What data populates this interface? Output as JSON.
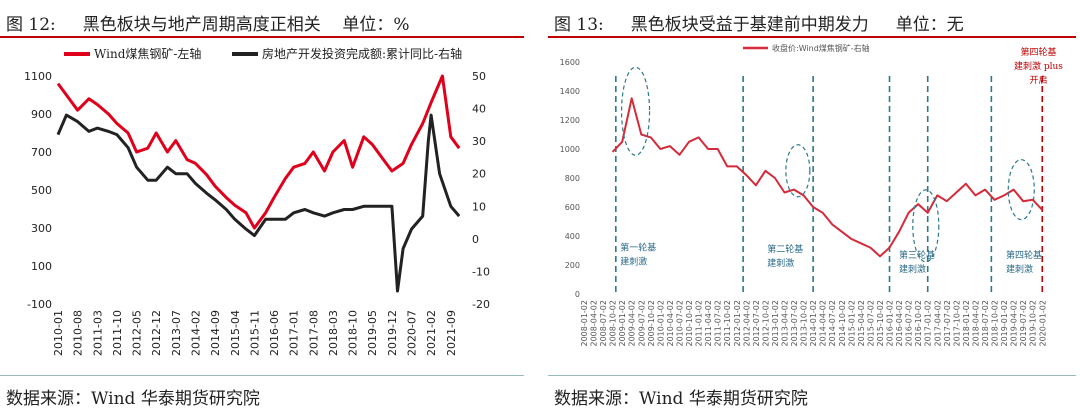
{
  "left": {
    "title": "图 12:     黑色板块与地产周期高度正相关    单位：%",
    "source": "数据来源：Wind 华泰期货研究院",
    "chart_data": {
      "type": "line",
      "legend_placement": "top",
      "series": [
        {
          "name": "Wind煤焦钢矿-左轴",
          "axis": "left",
          "color": "#e0001b",
          "x": [
            "2010-01",
            "2010-04",
            "2010-08",
            "2010-12",
            "2011-03",
            "2011-07",
            "2011-10",
            "2012-02",
            "2012-05",
            "2012-09",
            "2012-12",
            "2013-04",
            "2013-07",
            "2013-11",
            "2014-02",
            "2014-06",
            "2014-09",
            "2015-01",
            "2015-04",
            "2015-08",
            "2015-11",
            "2016-03",
            "2016-06",
            "2016-10",
            "2017-01",
            "2017-05",
            "2017-08",
            "2017-12",
            "2018-03",
            "2018-07",
            "2018-10",
            "2019-02",
            "2019-05",
            "2019-09",
            "2019-12",
            "2020-04",
            "2020-07",
            "2020-11",
            "2021-02",
            "2021-06",
            "2021-09",
            "2021-12"
          ],
          "values": [
            1060,
            1000,
            920,
            980,
            950,
            900,
            850,
            800,
            700,
            720,
            800,
            700,
            760,
            660,
            640,
            580,
            520,
            460,
            420,
            380,
            300,
            380,
            460,
            560,
            620,
            640,
            700,
            600,
            700,
            760,
            620,
            780,
            740,
            660,
            600,
            640,
            740,
            850,
            960,
            1100,
            780,
            720
          ]
        },
        {
          "name": "房地产开发投资完成额:累计同比-右轴",
          "axis": "right",
          "color": "#222222",
          "x": [
            "2010-01",
            "2010-04",
            "2010-08",
            "2010-12",
            "2011-03",
            "2011-07",
            "2011-10",
            "2012-02",
            "2012-05",
            "2012-09",
            "2012-12",
            "2013-04",
            "2013-07",
            "2013-11",
            "2014-02",
            "2014-06",
            "2014-09",
            "2015-01",
            "2015-04",
            "2015-08",
            "2015-11",
            "2016-03",
            "2016-06",
            "2016-10",
            "2017-01",
            "2017-05",
            "2017-08",
            "2017-12",
            "2018-03",
            "2018-07",
            "2018-10",
            "2019-02",
            "2019-05",
            "2019-09",
            "2019-12",
            "2020-02",
            "2020-04",
            "2020-07",
            "2020-11",
            "2021-01",
            "2021-02",
            "2021-05",
            "2021-09",
            "2021-12"
          ],
          "values": [
            32,
            38,
            36,
            33,
            34,
            33,
            32,
            28,
            22,
            18,
            18,
            22,
            20,
            20,
            17,
            14,
            12,
            9,
            6,
            3,
            1,
            6,
            6,
            6,
            8,
            9,
            8,
            7,
            8,
            9,
            9,
            10,
            10,
            10,
            10,
            -16,
            -3,
            3,
            7,
            30,
            38,
            20,
            10,
            7
          ]
        }
      ],
      "y_left": {
        "min": -100,
        "max": 1100,
        "ticks": [
          -100,
          100,
          300,
          500,
          700,
          900,
          1100
        ]
      },
      "y_right": {
        "min": -20,
        "max": 50,
        "ticks": [
          -20,
          -10,
          0,
          10,
          20,
          30,
          40,
          50
        ]
      },
      "x_ticks": [
        "2010-01",
        "2010-08",
        "2011-03",
        "2011-10",
        "2012-05",
        "2012-12",
        "2013-07",
        "2014-02",
        "2014-09",
        "2015-04",
        "2015-11",
        "2016-06",
        "2017-01",
        "2017-08",
        "2018-03",
        "2018-10",
        "2019-05",
        "2019-12",
        "2020-07",
        "2021-02",
        "2021-09"
      ]
    }
  },
  "right": {
    "title": "图 13:     黑色板块受益于基建前中期发力     单位：无",
    "source": "数据来源：Wind 华泰期货研究院",
    "chart_data": {
      "type": "line",
      "legend_placement": "top",
      "series": [
        {
          "name": "收盘价:Wind煤焦钢矿-右轴",
          "color": "#d42a3a",
          "x": [
            "2008-10",
            "2009-01",
            "2009-04",
            "2009-07",
            "2009-10",
            "2010-01",
            "2010-04",
            "2010-07",
            "2010-10",
            "2011-01",
            "2011-04",
            "2011-07",
            "2011-10",
            "2012-01",
            "2012-04",
            "2012-07",
            "2012-10",
            "2013-01",
            "2013-04",
            "2013-07",
            "2013-10",
            "2014-01",
            "2014-04",
            "2014-07",
            "2014-10",
            "2015-01",
            "2015-04",
            "2015-07",
            "2015-10",
            "2016-01",
            "2016-04",
            "2016-07",
            "2016-10",
            "2017-01",
            "2017-04",
            "2017-07",
            "2017-10",
            "2018-01",
            "2018-04",
            "2018-07",
            "2018-10",
            "2019-01",
            "2019-04",
            "2019-07",
            "2019-10",
            "2020-01"
          ],
          "values": [
            980,
            1050,
            1350,
            1100,
            1080,
            1000,
            1020,
            960,
            1050,
            1080,
            1000,
            1000,
            880,
            880,
            820,
            750,
            850,
            800,
            700,
            720,
            680,
            600,
            560,
            480,
            430,
            380,
            350,
            320,
            260,
            320,
            430,
            560,
            620,
            560,
            680,
            640,
            700,
            760,
            680,
            720,
            650,
            680,
            720,
            640,
            650,
            580
          ]
        }
      ],
      "y_axis": {
        "min": 0,
        "max": 1600,
        "ticks": [
          0,
          200,
          400,
          600,
          800,
          1000,
          1200,
          1400,
          1600
        ]
      },
      "x_ticks": [
        "2008-01-02",
        "2008-04-02",
        "2008-07-02",
        "2008-10-02",
        "2009-01-02",
        "2009-04-02",
        "2009-07-02",
        "2009-10-02",
        "2010-01-02",
        "2010-04-02",
        "2010-07-02",
        "2010-10-02",
        "2011-01-02",
        "2011-04-02",
        "2011-07-02",
        "2011-10-02",
        "2012-01-02",
        "2012-04-02",
        "2012-07-02",
        "2012-10-02",
        "2013-01-02",
        "2013-04-02",
        "2013-07-02",
        "2013-10-02",
        "2014-01-02",
        "2014-04-02",
        "2014-07-02",
        "2014-10-02",
        "2015-01-02",
        "2015-04-02",
        "2015-07-02",
        "2015-10-02",
        "2016-01-02",
        "2016-04-02",
        "2016-07-02",
        "2016-10-02",
        "2017-01-02",
        "2017-04-02",
        "2017-07-02",
        "2017-10-02",
        "2018-01-02",
        "2018-04-02",
        "2018-07-02",
        "2018-10-02",
        "2019-01-02",
        "2019-04-02",
        "2019-07-02",
        "2019-10-02",
        "2020-01-02"
      ],
      "annotations": [
        {
          "label": "第一轮基建刺激",
          "x": "2008-11",
          "color": "#2a6a8a"
        },
        {
          "label": "第二轮基建刺激",
          "x": "2012-04",
          "color": "#2a6a8a"
        },
        {
          "label": "第三轮基建刺激",
          "x": "2016-01",
          "color": "#2a6a8a"
        },
        {
          "label": "第四轮基建刺激",
          "x": "2018-09",
          "color": "#2a6a8a"
        },
        {
          "label": "第四轮基建刺激 plus 开启",
          "x": "2020-01",
          "color": "#c00000"
        }
      ],
      "vlines": [
        "2008-11",
        "2012-03",
        "2014-01",
        "2016-01",
        "2017-01",
        "2018-09",
        "2020-01"
      ]
    }
  }
}
